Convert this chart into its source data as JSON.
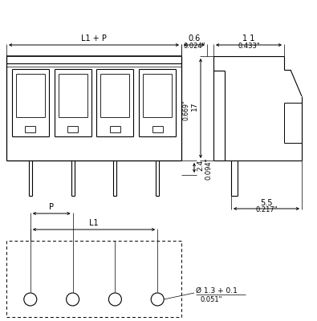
{
  "bg": "#ffffff",
  "lc": "#000000",
  "fig_w": 3.95,
  "fig_h": 4.0,
  "dpi": 100,
  "n_slots": 4,
  "ann": {
    "L1P": "L1 + P",
    "L1": "L1",
    "P": "P",
    "d06": "0.6",
    "d06i": "0.024\"",
    "d11": "1 1",
    "d11i": "0.433\"",
    "d24": "2.4",
    "d24i": "0.094\"",
    "d17": "17",
    "d17i": "0.669\"",
    "d55": "5.5",
    "d55i": "0.217\"",
    "dh": "Ø 1.3 + 0.1",
    "dhi": "0.051\""
  }
}
